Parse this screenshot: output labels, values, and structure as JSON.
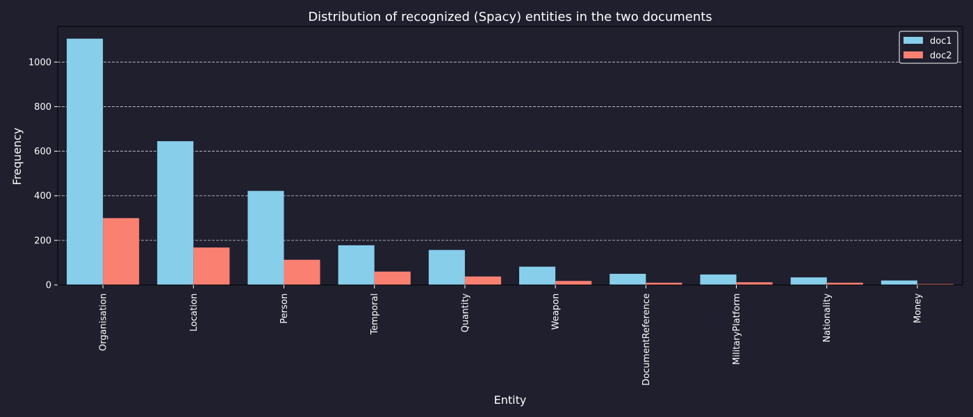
{
  "chart_data": {
    "type": "bar",
    "title": "Distribution of recognized (Spacy) entities in the two documents",
    "xlabel": "Entity",
    "ylabel": "Frequency",
    "categories": [
      "Organisation",
      "Location",
      "Person",
      "Temporal",
      "Quantity",
      "Weapon",
      "DocumentReference",
      "MilitaryPlatform",
      "Nationality",
      "Money"
    ],
    "series": [
      {
        "name": "doc1",
        "color": "#87ceeb",
        "values": [
          1105,
          645,
          422,
          178,
          157,
          82,
          50,
          47,
          34,
          20
        ]
      },
      {
        "name": "doc2",
        "color": "#fa8072",
        "values": [
          300,
          168,
          113,
          60,
          38,
          18,
          10,
          12,
          10,
          4
        ]
      }
    ],
    "ylim": [
      0,
      1160
    ],
    "yticks": [
      0,
      200,
      400,
      600,
      800,
      1000
    ],
    "grid": "y-dashed",
    "legend_position": "top-right",
    "background": "#1f1f2e",
    "frame_color": "#000000",
    "grid_color": "#d0d0d0"
  }
}
